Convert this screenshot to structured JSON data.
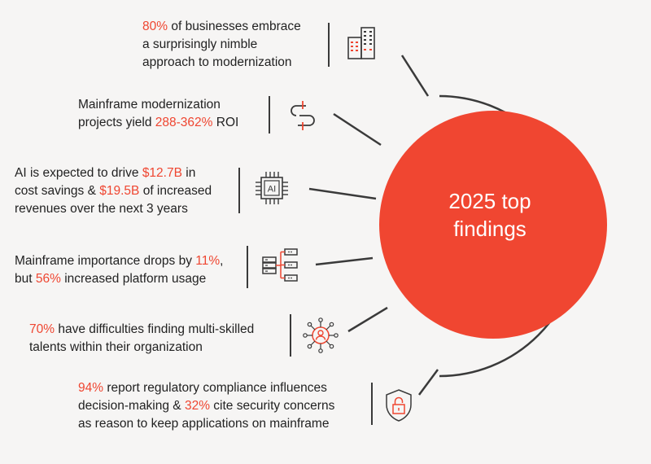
{
  "center": {
    "line1": "2025 top",
    "line2": "findings"
  },
  "colors": {
    "accent": "#ef4631",
    "text": "#222222",
    "line": "#3a3a3a",
    "circle": "#f04631",
    "background": "#f6f5f4"
  },
  "findings": [
    {
      "icon": "building-icon",
      "lines": [
        [
          {
            "t": "80%",
            "hl": true
          },
          {
            "t": " of businesses embrace",
            "hl": false
          }
        ],
        [
          {
            "t": "a surprisingly nimble",
            "hl": false
          }
        ],
        [
          {
            "t": "approach to modernization",
            "hl": false
          }
        ]
      ]
    },
    {
      "icon": "dollar-icon",
      "lines": [
        [
          {
            "t": "Mainframe modernization",
            "hl": false
          }
        ],
        [
          {
            "t": "projects yield ",
            "hl": false
          },
          {
            "t": "288-362%",
            "hl": true
          },
          {
            "t": " ROI",
            "hl": false
          }
        ]
      ]
    },
    {
      "icon": "ai-chip-icon",
      "icon_label": "AI",
      "lines": [
        [
          {
            "t": "AI is expected to drive ",
            "hl": false
          },
          {
            "t": "$12.7B",
            "hl": true
          },
          {
            "t": " in",
            "hl": false
          }
        ],
        [
          {
            "t": "cost savings & ",
            "hl": false
          },
          {
            "t": "$19.5B",
            "hl": true
          },
          {
            "t": " of increased",
            "hl": false
          }
        ],
        [
          {
            "t": "revenues over the next 3 years",
            "hl": false
          }
        ]
      ]
    },
    {
      "icon": "server-network-icon",
      "lines": [
        [
          {
            "t": "Mainframe importance drops by ",
            "hl": false
          },
          {
            "t": "11%",
            "hl": true
          },
          {
            "t": ",",
            "hl": false
          }
        ],
        [
          {
            "t": "but ",
            "hl": false
          },
          {
            "t": "56%",
            "hl": true
          },
          {
            "t": " increased platform usage",
            "hl": false
          }
        ]
      ]
    },
    {
      "icon": "people-network-icon",
      "lines": [
        [
          {
            "t": "70%",
            "hl": true
          },
          {
            "t": " have difficulties finding multi-skilled",
            "hl": false
          }
        ],
        [
          {
            "t": "talents within their organization",
            "hl": false
          }
        ]
      ]
    },
    {
      "icon": "lock-icon",
      "lines": [
        [
          {
            "t": "94%",
            "hl": true
          },
          {
            "t": " report regulatory compliance influences",
            "hl": false
          }
        ],
        [
          {
            "t": "decision-making & ",
            "hl": false
          },
          {
            "t": "32%",
            "hl": true
          },
          {
            "t": " cite security concerns",
            "hl": false
          }
        ],
        [
          {
            "t": "as reason to keep applications on mainframe",
            "hl": false
          }
        ]
      ]
    }
  ]
}
